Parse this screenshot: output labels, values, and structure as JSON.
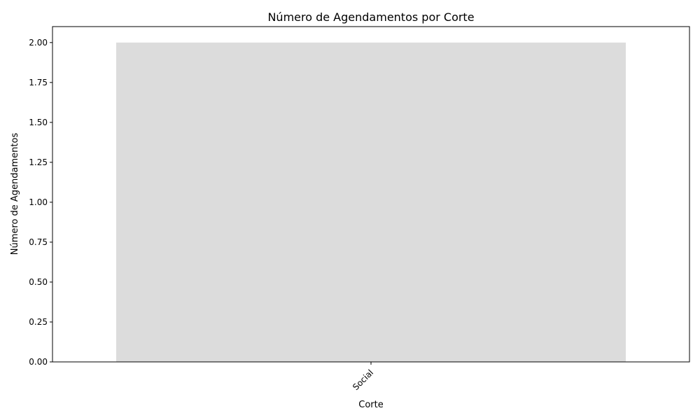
{
  "chart_data": {
    "type": "bar",
    "title": "Número de Agendamentos por Corte",
    "xlabel": "Corte",
    "ylabel": "Número de Agendamentos",
    "categories": [
      "Social"
    ],
    "values": [
      2
    ],
    "ylim": [
      0,
      2.1
    ],
    "yticks": [
      "0.00",
      "0.25",
      "0.50",
      "0.75",
      "1.00",
      "1.25",
      "1.50",
      "1.75",
      "2.00"
    ],
    "xtick_rotation": 45,
    "grid": false,
    "legend": "none",
    "bar_color": "#dcdcdc",
    "axis_color": "#000000"
  }
}
